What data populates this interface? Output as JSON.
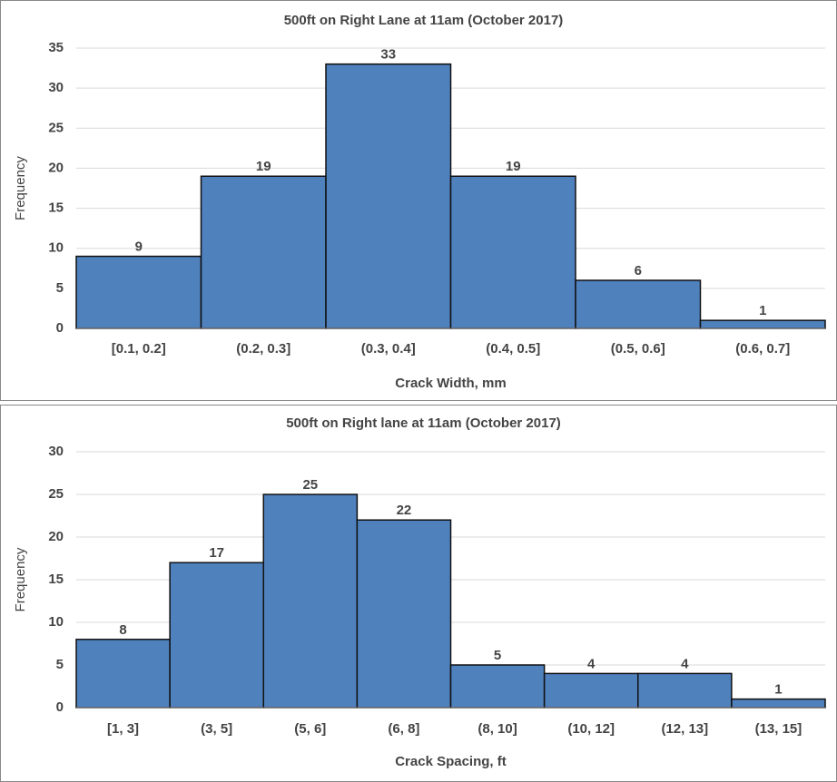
{
  "chart_data": [
    {
      "type": "bar",
      "title": "500ft on Right Lane at 11am (October 2017)",
      "x_label": "Crack Width, mm",
      "y_label": "Frequency",
      "categories": [
        "[0.1, 0.2]",
        "(0.2, 0.3]",
        "(0.3, 0.4]",
        "(0.4, 0.5]",
        "(0.5, 0.6]",
        "(0.6, 0.7]"
      ],
      "values": [
        9,
        19,
        33,
        19,
        6,
        1
      ],
      "color": "#4f81bd",
      "ylim": [
        0,
        35
      ],
      "yticks": [
        0,
        5,
        10,
        15,
        20,
        25,
        30,
        35
      ],
      "grid": true
    },
    {
      "type": "bar",
      "title": "500ft on Right lane at 11am (October 2017)",
      "x_label": "Crack Spacing, ft",
      "y_label": "Frequency",
      "categories": [
        "[1, 3]",
        "(3, 5]",
        "(5, 6]",
        "(6, 8]",
        "(8, 10]",
        "(10, 12]",
        "(12, 13]",
        "(13, 15]"
      ],
      "values": [
        8,
        17,
        25,
        22,
        5,
        4,
        4,
        1
      ],
      "color": "#4f81bd",
      "ylim": [
        0,
        30
      ],
      "yticks": [
        0,
        5,
        10,
        15,
        20,
        25,
        30
      ],
      "grid": true
    }
  ]
}
